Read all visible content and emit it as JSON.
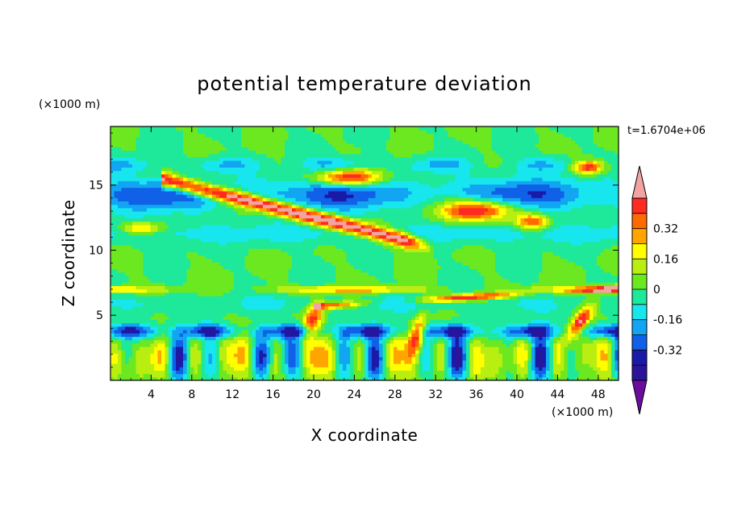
{
  "chart_data": {
    "type": "heatmap",
    "title": "potential temperature deviation",
    "xlabel": "X coordinate",
    "ylabel": "Z coordinate",
    "x_unit": "(×1000 m)",
    "y_unit": "(×1000 m)",
    "time_label": "t=1.6704e+06",
    "xlim": [
      0,
      50
    ],
    "ylim": [
      0,
      19.5
    ],
    "x_ticks": [
      4,
      8,
      12,
      16,
      20,
      24,
      28,
      32,
      36,
      40,
      44,
      48
    ],
    "x_tick_labels": [
      "4",
      "8",
      "12",
      "16",
      "20",
      "24",
      "28",
      "32",
      "36",
      "40",
      "44",
      "48"
    ],
    "y_ticks": [
      5,
      10,
      15
    ],
    "y_tick_labels": [
      "5",
      "10",
      "15"
    ],
    "colorbar": {
      "levels": [
        -0.48,
        -0.4,
        -0.32,
        -0.24,
        -0.16,
        -0.08,
        0,
        0.08,
        0.16,
        0.24,
        0.32,
        0.4,
        0.48
      ],
      "labels": [
        "-0.32",
        "-0.16",
        "0",
        "0.16",
        "0.32"
      ],
      "label_values": [
        -0.32,
        -0.16,
        0,
        0.16,
        0.32
      ],
      "colors": [
        "#6a0d9c",
        "#2a149a",
        "#1a1aa8",
        "#1060e8",
        "#12a6f2",
        "#18e6ee",
        "#1ee89a",
        "#6ce820",
        "#b8ee10",
        "#ffff00",
        "#ffa500",
        "#ff6a00",
        "#ff2a20",
        "#f4a3a3"
      ],
      "extend": "both"
    },
    "field_features": [
      {
        "name": "background",
        "x": [
          0,
          50
        ],
        "z": [
          0,
          19.5
        ],
        "value": 0.0
      },
      {
        "name": "neg_layer_upper",
        "x": [
          0,
          50
        ],
        "z": [
          13,
          16
        ],
        "value": -0.3
      },
      {
        "name": "warm_band_diagonal",
        "x": [
          6,
          30
        ],
        "z": [
          10.5,
          15.5
        ],
        "value": 0.45
      },
      {
        "name": "warm_patch_right",
        "x": [
          32,
          38
        ],
        "z": [
          12,
          14
        ],
        "value": 0.45
      },
      {
        "name": "warm_patch_top",
        "x": [
          20,
          26
        ],
        "z": [
          15,
          16.5
        ],
        "value": 0.45
      },
      {
        "name": "neg_layer_low",
        "x": [
          0,
          50
        ],
        "z": [
          3,
          4.5
        ],
        "value": -0.35
      },
      {
        "name": "convective_plumes",
        "x": [
          0,
          50
        ],
        "z": [
          0,
          5.5
        ],
        "value": 0.2
      }
    ]
  }
}
